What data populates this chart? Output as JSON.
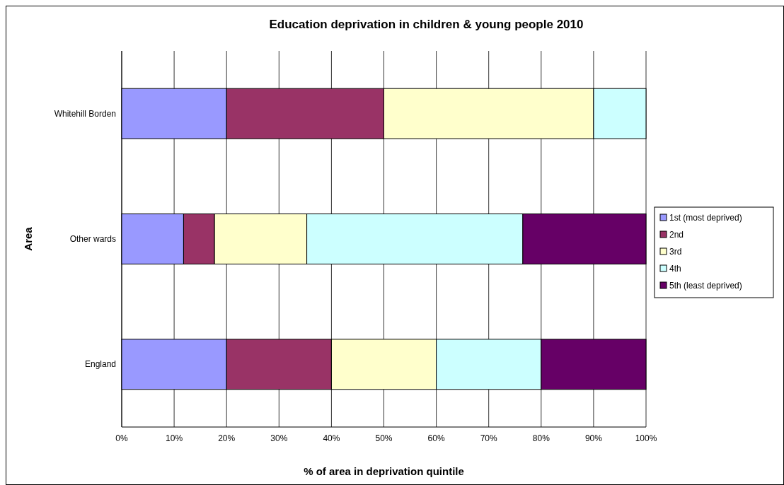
{
  "chart_data": {
    "type": "bar",
    "orientation": "horizontal",
    "stacked": true,
    "title": "Education deprivation in children & young people 2010",
    "xlabel": "% of area in deprivation quintile",
    "ylabel": "Area",
    "categories": [
      "Whitehill Borden",
      "Other wards",
      "England"
    ],
    "series": [
      {
        "name": "1st (most deprived)",
        "color": "#9999ff",
        "values": [
          20,
          11.8,
          20
        ]
      },
      {
        "name": "2nd",
        "color": "#993366",
        "values": [
          30,
          5.9,
          20
        ]
      },
      {
        "name": "3rd",
        "color": "#ffffcc",
        "values": [
          40,
          17.6,
          20
        ]
      },
      {
        "name": "4th",
        "color": "#ccffff",
        "values": [
          10,
          41.2,
          20
        ]
      },
      {
        "name": "5th (least deprived)",
        "color": "#660066",
        "values": [
          0,
          23.5,
          20
        ]
      }
    ],
    "xlim": [
      0,
      100
    ],
    "xticks": [
      {
        "value": 0,
        "label": "0%"
      },
      {
        "value": 10,
        "label": "10%"
      },
      {
        "value": 20,
        "label": "20%"
      },
      {
        "value": 30,
        "label": "30%"
      },
      {
        "value": 40,
        "label": "40%"
      },
      {
        "value": 50,
        "label": "50%"
      },
      {
        "value": 60,
        "label": "60%"
      },
      {
        "value": 70,
        "label": "70%"
      },
      {
        "value": 80,
        "label": "80%"
      },
      {
        "value": 90,
        "label": "90%"
      },
      {
        "value": 100,
        "label": "100%"
      }
    ],
    "grid": "x",
    "legend": "right"
  }
}
